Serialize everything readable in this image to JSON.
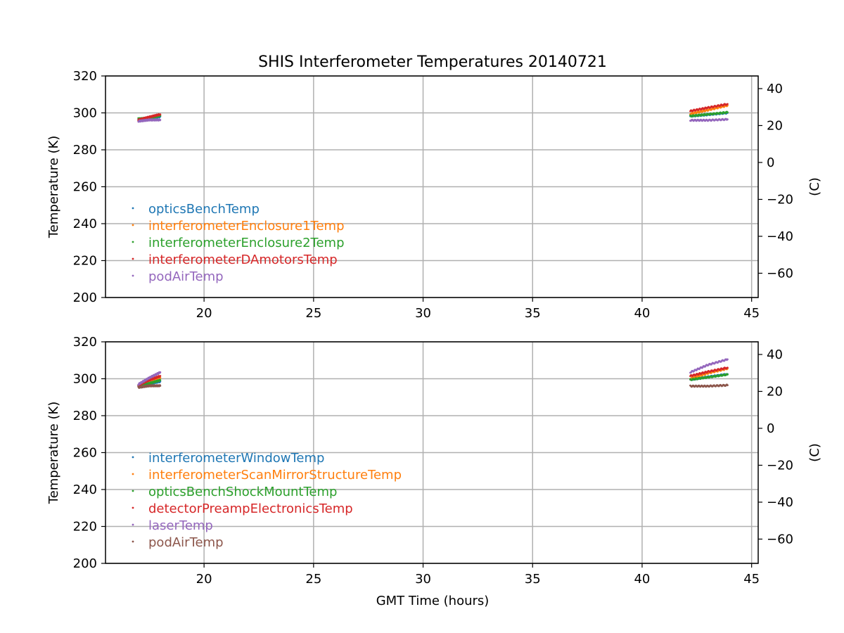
{
  "chart_data": [
    {
      "type": "scatter",
      "title": "SHIS Interferometer Temperatures 20140721",
      "xlabel": "",
      "ylabel": "Temperature (K)",
      "ylabel_right": "(C)",
      "xlim": [
        15.5,
        45.3
      ],
      "ylim": [
        200,
        320
      ],
      "xticks": [
        20,
        25,
        30,
        35,
        40,
        45
      ],
      "yticks": [
        200,
        220,
        240,
        260,
        280,
        300,
        320
      ],
      "yticks_right": [
        -60,
        -40,
        -20,
        0,
        20,
        40
      ],
      "grid": true,
      "legend_position": "lower-left",
      "series": [
        {
          "name": "opticsBenchTemp",
          "color": "#1f77b4",
          "segments": [
            {
              "x": [
                17.0,
                17.5,
                18.0
              ],
              "y": [
                296.3,
                297.0,
                298.0
              ]
            },
            {
              "x": [
                42.2,
                43.0,
                43.9
              ],
              "y": [
                298.2,
                299.0,
                300.0
              ]
            }
          ]
        },
        {
          "name": "interferometerEnclosure1Temp",
          "color": "#ff7f0e",
          "segments": [
            {
              "x": [
                17.0,
                17.5,
                18.0
              ],
              "y": [
                296.0,
                297.5,
                298.8
              ]
            },
            {
              "x": [
                42.2,
                43.0,
                43.9
              ],
              "y": [
                299.5,
                301.5,
                304.0
              ]
            }
          ]
        },
        {
          "name": "interferometerEnclosure2Temp",
          "color": "#2ca02c",
          "segments": [
            {
              "x": [
                17.0,
                17.5,
                18.0
              ],
              "y": [
                296.8,
                297.2,
                298.5
              ]
            },
            {
              "x": [
                42.2,
                43.0,
                43.9
              ],
              "y": [
                298.3,
                299.2,
                300.3
              ]
            }
          ]
        },
        {
          "name": "interferometerDAmotorsTemp",
          "color": "#d62728",
          "segments": [
            {
              "x": [
                17.0,
                17.5,
                18.0
              ],
              "y": [
                296.2,
                297.8,
                299.2
              ]
            },
            {
              "x": [
                42.2,
                43.0,
                43.9
              ],
              "y": [
                301.0,
                302.8,
                304.8
              ]
            }
          ]
        },
        {
          "name": "podAirTemp",
          "color": "#9467bd",
          "segments": [
            {
              "x": [
                17.0,
                17.5,
                18.0
              ],
              "y": [
                295.5,
                296.2,
                296.2
              ]
            },
            {
              "x": [
                42.2,
                43.0,
                43.9
              ],
              "y": [
                296.0,
                296.0,
                296.5
              ]
            }
          ]
        }
      ]
    },
    {
      "type": "scatter",
      "title": "",
      "xlabel": "GMT Time (hours)",
      "ylabel": "Temperature (K)",
      "ylabel_right": "(C)",
      "xlim": [
        15.5,
        45.3
      ],
      "ylim": [
        200,
        320
      ],
      "xticks": [
        20,
        25,
        30,
        35,
        40,
        45
      ],
      "yticks": [
        200,
        220,
        240,
        260,
        280,
        300,
        320
      ],
      "yticks_right": [
        -60,
        -40,
        -20,
        0,
        20,
        40
      ],
      "grid": true,
      "legend_position": "lower-left",
      "series": [
        {
          "name": "interferometerWindowTemp",
          "color": "#1f77b4",
          "segments": [
            {
              "x": [
                17.0,
                17.5,
                18.0
              ],
              "y": [
                296.5,
                297.3,
                298.5
              ]
            },
            {
              "x": [
                42.2,
                43.0,
                43.9
              ],
              "y": [
                299.5,
                301.0,
                302.5
              ]
            }
          ]
        },
        {
          "name": "interferometerScanMirrorStructureTemp",
          "color": "#ff7f0e",
          "segments": [
            {
              "x": [
                17.0,
                17.5,
                18.0
              ],
              "y": [
                296.3,
                298.5,
                300.5
              ]
            },
            {
              "x": [
                42.2,
                43.0,
                43.9
              ],
              "y": [
                300.0,
                303.0,
                305.5
              ]
            }
          ]
        },
        {
          "name": "opticsBenchShockMountTemp",
          "color": "#2ca02c",
          "segments": [
            {
              "x": [
                17.0,
                17.5,
                18.0
              ],
              "y": [
                296.0,
                297.5,
                299.2
              ]
            },
            {
              "x": [
                42.2,
                43.0,
                43.9
              ],
              "y": [
                299.5,
                300.8,
                302.3
              ]
            }
          ]
        },
        {
          "name": "detectorPreampElectronicsTemp",
          "color": "#d62728",
          "segments": [
            {
              "x": [
                17.0,
                17.5,
                18.0
              ],
              "y": [
                296.5,
                299.3,
                301.5
              ]
            },
            {
              "x": [
                42.2,
                43.0,
                43.9
              ],
              "y": [
                301.5,
                303.8,
                306.0
              ]
            }
          ]
        },
        {
          "name": "laserTemp",
          "color": "#9467bd",
          "segments": [
            {
              "x": [
                17.0,
                17.5,
                18.0
              ],
              "y": [
                297.0,
                300.5,
                303.5
              ]
            },
            {
              "x": [
                42.2,
                43.0,
                43.9
              ],
              "y": [
                303.5,
                307.5,
                310.5
              ]
            }
          ]
        },
        {
          "name": "podAirTemp",
          "color": "#8c564b",
          "segments": [
            {
              "x": [
                17.0,
                17.5,
                18.0
              ],
              "y": [
                295.3,
                296.2,
                296.2
              ]
            },
            {
              "x": [
                42.2,
                43.0,
                43.9
              ],
              "y": [
                296.0,
                296.0,
                296.5
              ]
            }
          ]
        }
      ]
    }
  ]
}
